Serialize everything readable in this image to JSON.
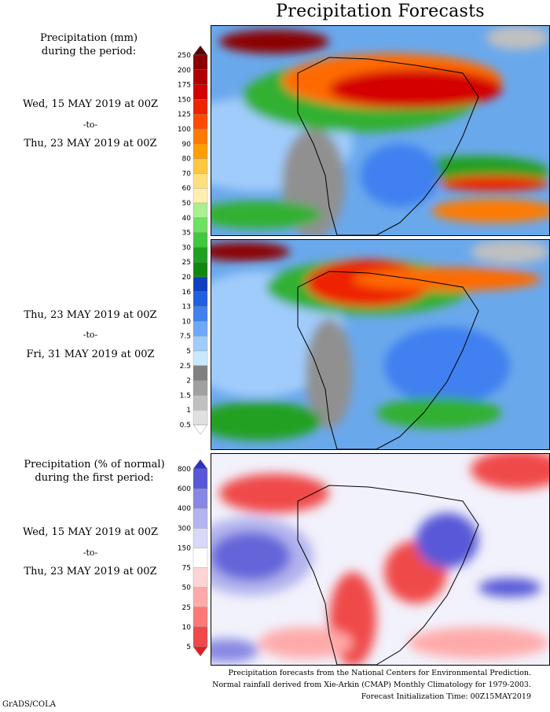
{
  "title": "Precipitation Forecasts",
  "panel1": {
    "header": [
      "Precipitation (mm)",
      "during the period:"
    ],
    "from": "Wed, 15 MAY 2019 at 00Z",
    "sep": "-to-",
    "to": "Thu, 23 MAY 2019 at 00Z"
  },
  "panel2": {
    "from": "Thu, 23 MAY 2019 at 00Z",
    "sep": "-to-",
    "to": "Fri, 31 MAY 2019 at 00Z"
  },
  "panel3": {
    "header": [
      "Precipitation (% of normal)",
      "during the first period:"
    ],
    "from": "Wed, 15 MAY 2019 at 00Z",
    "sep": "-to-",
    "to": "Thu, 23 MAY 2019 at 00Z"
  },
  "mm_scale": {
    "levels": [
      "250",
      "200",
      "175",
      "150",
      "125",
      "100",
      "90",
      "80",
      "70",
      "60",
      "50",
      "40",
      "35",
      "30",
      "25",
      "20",
      "16",
      "13",
      "10",
      "7.5",
      "5",
      "2.5",
      "2",
      "1.5",
      "1",
      "0.5"
    ],
    "colors": [
      "#5a0000",
      "#8b0000",
      "#b00000",
      "#d40000",
      "#ee2200",
      "#ff4a00",
      "#ff7a00",
      "#ff9e00",
      "#ffc840",
      "#ffe080",
      "#fff0b0",
      "#a8f090",
      "#70e060",
      "#40c840",
      "#20a020",
      "#108810",
      "#1040c0",
      "#2060e0",
      "#4080f0",
      "#70a8f8",
      "#a0ccfc",
      "#c8e8ff",
      "#808080",
      "#a0a0a0",
      "#c0c0c0",
      "#e0e0e0",
      "#ffffff"
    ]
  },
  "pct_scale": {
    "levels": [
      "800",
      "600",
      "400",
      "300",
      "150",
      "75",
      "50",
      "25",
      "10",
      "5"
    ],
    "colors": [
      "#3030c8",
      "#5858d8",
      "#8888e4",
      "#b4b4f0",
      "#d8d8f8",
      "#ffffff",
      "#ffd4d4",
      "#ffaaaa",
      "#ff7878",
      "#f04848",
      "#e02020"
    ]
  },
  "footer": [
    "Precipitation forecasts from the National Centers for Environmental Prediction.",
    "Normal rainfall derived from Xie-Arkin (CMAP) Monthly Climatology for 1979-2003.",
    "Forecast Initialization Time: 00Z15MAY2019"
  ],
  "credit": "GrADS/COLA"
}
